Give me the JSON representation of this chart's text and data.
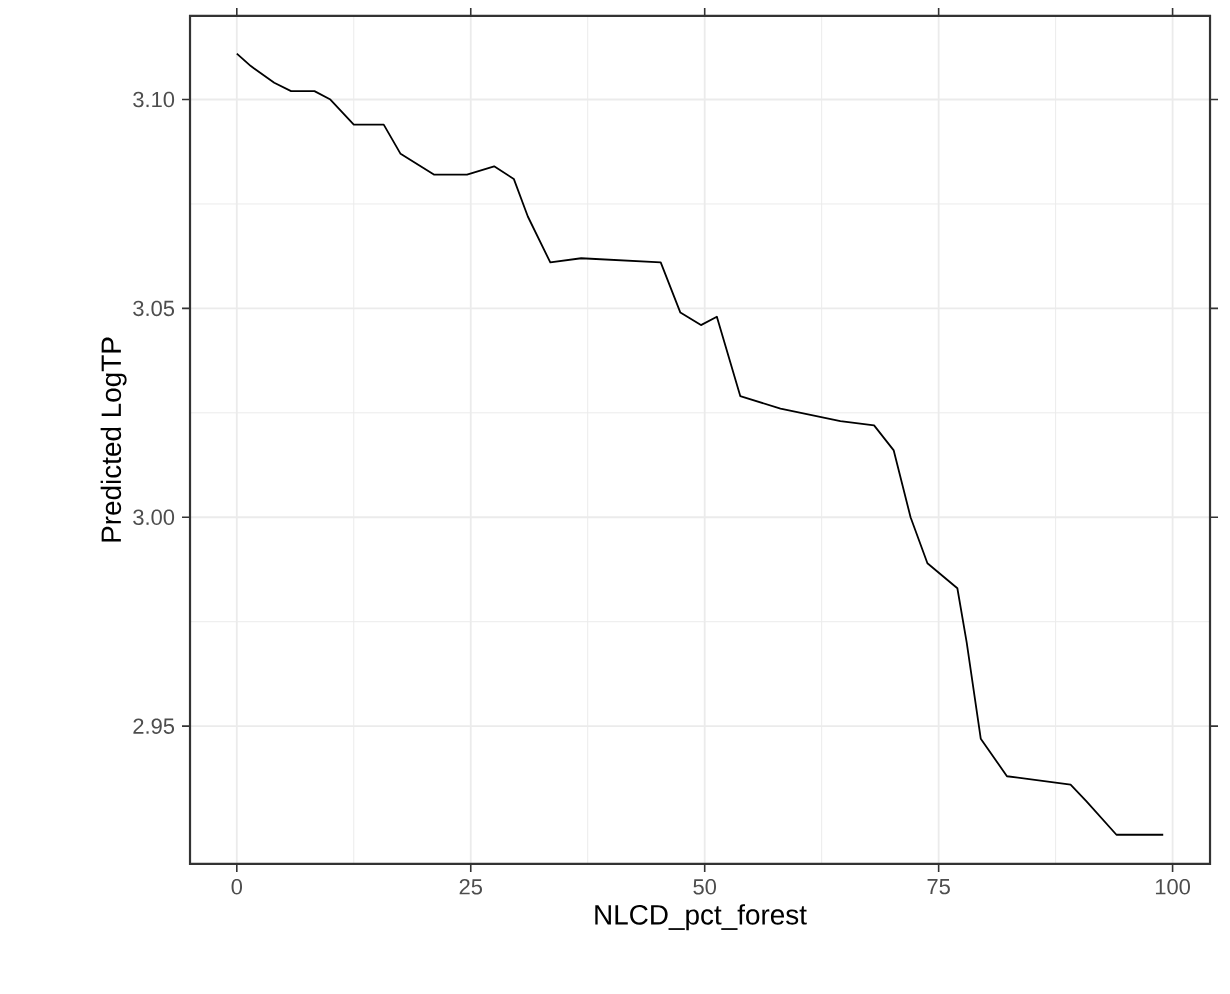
{
  "chart_data": {
    "type": "line",
    "xlabel": "NLCD_pct_forest",
    "ylabel": "Predicted  LogTP",
    "x": [
      0,
      1.5,
      4,
      5.8,
      8.3,
      10,
      12.5,
      15.7,
      17.5,
      21.1,
      24.6,
      27.5,
      29.6,
      31.1,
      33.5,
      36.8,
      45.3,
      47.4,
      49.6,
      51.3,
      53.8,
      58.1,
      64.5,
      68.1,
      70.2,
      72,
      73.8,
      77,
      78,
      79.5,
      82.3,
      89.1,
      90.8,
      94,
      99
    ],
    "series": [
      {
        "color": "#000000",
        "values": [
          3.111,
          3.108,
          3.104,
          3.102,
          3.102,
          3.1,
          3.094,
          3.094,
          3.087,
          3.082,
          3.082,
          3.084,
          3.081,
          3.072,
          3.061,
          3.062,
          3.061,
          3.049,
          3.046,
          3.048,
          3.029,
          3.026,
          3.023,
          3.022,
          3.016,
          3.0,
          2.989,
          2.983,
          2.97,
          2.947,
          2.938,
          2.936,
          2.932,
          2.924,
          2.924
        ]
      }
    ],
    "xlim": [
      -5,
      104
    ],
    "ylim": [
      2.917,
      3.12
    ],
    "xticks": [
      0,
      25,
      50,
      75,
      100
    ],
    "yticks": [
      {
        "value": 2.95,
        "label": "2.95"
      },
      {
        "value": 3.0,
        "label": "3.00"
      },
      {
        "value": 3.05,
        "label": "3.05"
      },
      {
        "value": 3.1,
        "label": "3.10"
      }
    ],
    "grid": true
  }
}
